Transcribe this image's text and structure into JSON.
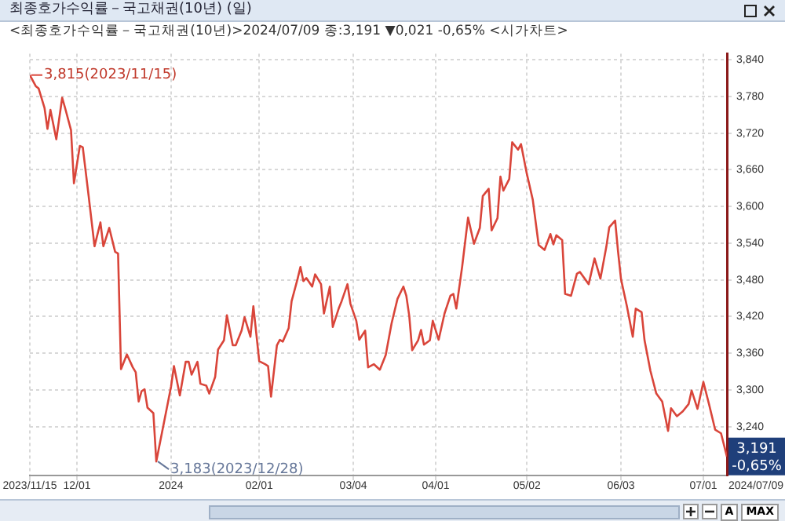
{
  "chart_data": {
    "type": "line",
    "title": "최종호가수익률－국고채권(10년) (일)",
    "subtitle": "<최종호가수익률－국고채권(10년)>2024/07/09 종:3,191 ▼0,021 -0,65% <시가차트>",
    "x": [
      "2023-11-15",
      "2023-11-17",
      "2023-11-18",
      "2023-11-20",
      "2023-11-21",
      "2023-11-22",
      "2023-11-24",
      "2023-11-26",
      "2023-11-27",
      "2023-11-29",
      "2023-11-30",
      "2023-12-02",
      "2023-12-03",
      "2023-12-05",
      "2023-12-07",
      "2023-12-09",
      "2023-12-10",
      "2023-12-12",
      "2023-12-14",
      "2023-12-15",
      "2023-12-16",
      "2023-12-18",
      "2023-12-20",
      "2023-12-21",
      "2023-12-22",
      "2023-12-23",
      "2023-12-24",
      "2023-12-25",
      "2023-12-27",
      "2023-12-28",
      "2024-01-02",
      "2024-01-03",
      "2024-01-05",
      "2024-01-07",
      "2024-01-08",
      "2024-01-09",
      "2024-01-11",
      "2024-01-12",
      "2024-01-14",
      "2024-01-15",
      "2024-01-17",
      "2024-01-18",
      "2024-01-20",
      "2024-01-21",
      "2024-01-23",
      "2024-01-24",
      "2024-01-26",
      "2024-01-27",
      "2024-01-29",
      "2024-01-30",
      "2024-02-01",
      "2024-02-03",
      "2024-02-04",
      "2024-02-05",
      "2024-02-07",
      "2024-02-08",
      "2024-02-09",
      "2024-02-11",
      "2024-02-12",
      "2024-02-14",
      "2024-02-15",
      "2024-02-16",
      "2024-02-17",
      "2024-02-19",
      "2024-02-20",
      "2024-02-22",
      "2024-02-23",
      "2024-02-25",
      "2024-02-26",
      "2024-02-28",
      "2024-02-29",
      "2024-03-02",
      "2024-03-03",
      "2024-03-05",
      "2024-03-06",
      "2024-03-08",
      "2024-03-09",
      "2024-03-11",
      "2024-03-13",
      "2024-03-15",
      "2024-03-17",
      "2024-03-19",
      "2024-03-21",
      "2024-03-22",
      "2024-03-23",
      "2024-03-24",
      "2024-03-26",
      "2024-03-27",
      "2024-03-28",
      "2024-03-30",
      "2024-03-31",
      "2024-04-02",
      "2024-04-04",
      "2024-04-06",
      "2024-04-07",
      "2024-04-08",
      "2024-04-10",
      "2024-04-12",
      "2024-04-14",
      "2024-04-16",
      "2024-04-17",
      "2024-04-19",
      "2024-04-20",
      "2024-04-22",
      "2024-04-23",
      "2024-04-24",
      "2024-04-26",
      "2024-04-27",
      "2024-04-29",
      "2024-04-30",
      "2024-05-02",
      "2024-05-04",
      "2024-05-06",
      "2024-05-08",
      "2024-05-10",
      "2024-05-11",
      "2024-05-12",
      "2024-05-14",
      "2024-05-15",
      "2024-05-17",
      "2024-05-19",
      "2024-05-20",
      "2024-05-23",
      "2024-05-25",
      "2024-05-27",
      "2024-05-29",
      "2024-05-30",
      "2024-06-01",
      "2024-06-02",
      "2024-06-03",
      "2024-06-05",
      "2024-06-07",
      "2024-06-08",
      "2024-06-10",
      "2024-06-11",
      "2024-06-13",
      "2024-06-15",
      "2024-06-17",
      "2024-06-19",
      "2024-06-20",
      "2024-06-22",
      "2024-06-24",
      "2024-06-26",
      "2024-06-27",
      "2024-06-29",
      "2024-07-01",
      "2024-07-03",
      "2024-07-05",
      "2024-07-07",
      "2024-07-09"
    ],
    "values": [
      3815,
      3797,
      3793,
      3761,
      3727,
      3758,
      3710,
      3778,
      3761,
      3725,
      3638,
      3699,
      3697,
      3617,
      3535,
      3574,
      3535,
      3565,
      3526,
      3523,
      3334,
      3358,
      3337,
      3329,
      3281,
      3298,
      3301,
      3271,
      3262,
      3183,
      3305,
      3339,
      3291,
      3346,
      3346,
      3325,
      3346,
      3310,
      3307,
      3294,
      3321,
      3366,
      3381,
      3422,
      3373,
      3373,
      3397,
      3419,
      3387,
      3437,
      3347,
      3342,
      3339,
      3289,
      3373,
      3382,
      3379,
      3401,
      3445,
      3481,
      3501,
      3478,
      3483,
      3469,
      3489,
      3473,
      3425,
      3469,
      3403,
      3433,
      3445,
      3473,
      3441,
      3413,
      3382,
      3397,
      3337,
      3342,
      3333,
      3357,
      3409,
      3449,
      3469,
      3454,
      3421,
      3365,
      3381,
      3398,
      3374,
      3381,
      3413,
      3382,
      3425,
      3454,
      3457,
      3433,
      3502,
      3582,
      3539,
      3565,
      3617,
      3629,
      3561,
      3581,
      3649,
      3626,
      3645,
      3705,
      3693,
      3702,
      3653,
      3611,
      3537,
      3529,
      3555,
      3538,
      3553,
      3545,
      3457,
      3454,
      3490,
      3493,
      3473,
      3515,
      3482,
      3534,
      3566,
      3577,
      3526,
      3481,
      3437,
      3387,
      3433,
      3427,
      3381,
      3331,
      3294,
      3281,
      3233,
      3270,
      3257,
      3265,
      3277,
      3299,
      3269,
      3313,
      3275,
      3235,
      3229,
      3191
    ],
    "color": "#d9453a",
    "xlim": [
      "2023-11-15",
      "2024-07-09"
    ],
    "xticks": [
      {
        "value": "2023-11-15",
        "label": "2023/11/15"
      },
      {
        "value": "2023-12-01",
        "label": "12/01"
      },
      {
        "value": "2024-01-02",
        "label": "2024"
      },
      {
        "value": "2024-02-01",
        "label": "02/01"
      },
      {
        "value": "2024-03-04",
        "label": "03/04"
      },
      {
        "value": "2024-04-01",
        "label": "04/01"
      },
      {
        "value": "2024-05-02",
        "label": "05/02"
      },
      {
        "value": "2024-06-03",
        "label": "06/03"
      },
      {
        "value": "2024-07-01",
        "label": "07/01"
      }
    ],
    "ylim": [
      3160,
      3850
    ],
    "yticks": [
      {
        "value": 3240,
        "label": "3,240"
      },
      {
        "value": 3300,
        "label": "3,300"
      },
      {
        "value": 3360,
        "label": "3,360"
      },
      {
        "value": 3420,
        "label": "3,420"
      },
      {
        "value": 3480,
        "label": "3,480"
      },
      {
        "value": 3540,
        "label": "3,540"
      },
      {
        "value": 3600,
        "label": "3,600"
      },
      {
        "value": 3660,
        "label": "3,660"
      },
      {
        "value": 3720,
        "label": "3,720"
      },
      {
        "value": 3780,
        "label": "3,780"
      },
      {
        "value": 3840,
        "label": "3,840"
      }
    ],
    "grid": true,
    "marker": "none",
    "line_style": "solid",
    "annotations": [
      {
        "text": "3,815(2023/11/15)",
        "x": "2023-11-15",
        "y": 3815
      },
      {
        "text": "3,183(2023/12/28)",
        "x": "2023-12-28",
        "y": 3183
      },
      {
        "text": "3,191 -0,65%",
        "x": "2024-07-09",
        "y": 3191
      },
      "2024/07/09",
      "A",
      "MAX"
    ]
  }
}
